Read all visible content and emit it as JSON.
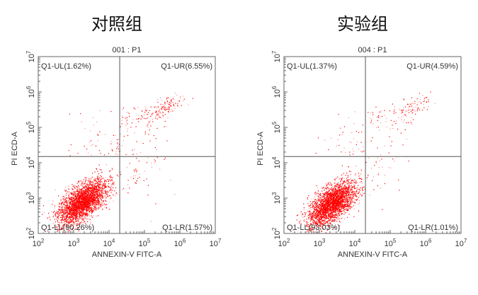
{
  "chart_data": [
    {
      "type": "scatter",
      "group_title": "对照组",
      "title": "001 : P1",
      "xlabel": "ANNEXIN-V FITC-A",
      "ylabel": "PI ECD-A",
      "xscale": "log",
      "yscale": "log",
      "xlim": [
        100,
        10000000
      ],
      "ylim": [
        100,
        10000000
      ],
      "tick_exponents": [
        2,
        3,
        4,
        5,
        6,
        7
      ],
      "gate": {
        "x": 20000,
        "y": 15000
      },
      "quadrants": {
        "UL": "Q1-UL(1.62%)",
        "UR": "Q1-UR(6.55%)",
        "LL": "Q1-LL(90.26%)",
        "LR": "Q1-LR(1.57%)"
      },
      "percentages": {
        "UL": 1.62,
        "UR": 6.55,
        "LL": 90.26,
        "LR": 1.57
      },
      "clusters_log10": {
        "LL": [
          3.25,
          2.9
        ],
        "UR": [
          5.65,
          5.62
        ]
      }
    },
    {
      "type": "scatter",
      "group_title": "实验组",
      "title": "004 : P1",
      "xlabel": "ANNEXIN-V FITC-A",
      "ylabel": "PI ECD-A",
      "xscale": "log",
      "yscale": "log",
      "xlim": [
        100,
        10000000
      ],
      "ylim": [
        100,
        10000000
      ],
      "tick_exponents": [
        2,
        3,
        4,
        5,
        6,
        7
      ],
      "gate": {
        "x": 20000,
        "y": 15000
      },
      "quadrants": {
        "UL": "Q1-UL(1.37%)",
        "UR": "Q1-UR(4.59%)",
        "LL": "Q1-LL(93.03%)",
        "LR": "Q1-LR(1.01%)"
      },
      "percentages": {
        "UL": 1.37,
        "UR": 4.59,
        "LL": 93.03,
        "LR": 1.01
      },
      "clusters_log10": {
        "LL": [
          3.35,
          2.85
        ],
        "UR": [
          5.65,
          5.6
        ]
      }
    }
  ],
  "colors": {
    "points": "#ff0000",
    "axis": "#555555",
    "gate": "#555555"
  }
}
